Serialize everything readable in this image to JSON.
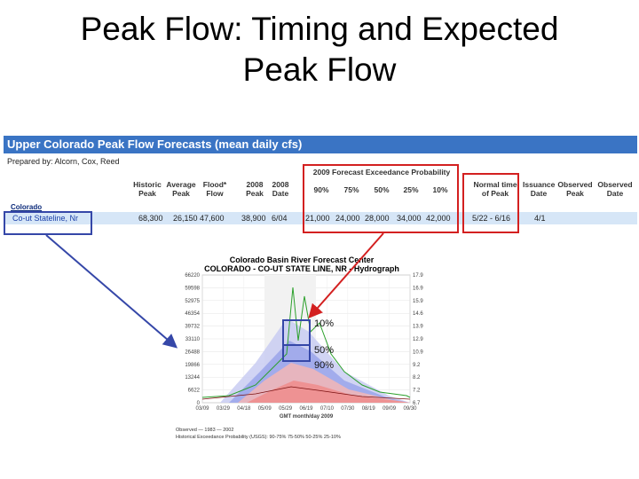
{
  "slide": {
    "title_line1": "Peak Flow: Timing and Expected",
    "title_line2": "Peak Flow"
  },
  "table": {
    "heading": "Upper Colorado Peak Flow Forecasts (mean daily cfs)",
    "prepared_by": "Prepared by: Alcorn, Cox, Reed",
    "col_headers": {
      "historic": "Historic\nPeak",
      "average": "Average\nPeak",
      "flood": "Flood*\nFlow",
      "peak2008": "2008\nPeak",
      "date2008": "2008\nDate",
      "forecast_group": "2009 Forecast Exceedance Probability",
      "p90": "90%",
      "p75": "75%",
      "p50": "50%",
      "p25": "25%",
      "p10": "10%",
      "normal_time": "Normal time\nof Peak",
      "issuance": "Issuance\nDate",
      "obs_peak": "Observed\nPeak",
      "obs_date": "Observed\nDate"
    },
    "state": "Colorado",
    "row": {
      "name": "Co-ut Stateline, Nr",
      "historic": "68,300",
      "average": "26,150",
      "flood": "47,600",
      "peak2008": "38,900",
      "date2008": "6/04",
      "p90": "21,000",
      "p75": "24,000",
      "p50": "28,000",
      "p25": "34,000",
      "p10": "42,000",
      "normal_time": "5/22 - 6/16",
      "issuance": "4/1"
    }
  },
  "hydrograph": {
    "title1": "Colorado Basin River Forecast Center",
    "title2": "COLORADO - CO-UT STATE LINE, NR - Hydrograph",
    "y_ticks": [
      "66220",
      "59598",
      "52975",
      "46354",
      "39732",
      "33110",
      "26488",
      "19866",
      "13244",
      "6622",
      "0"
    ],
    "y2_ticks": [
      "17.9",
      "16.9",
      "15.9",
      "14.6",
      "13.9",
      "12.9",
      "10.9",
      "9.2",
      "8.2",
      "7.2",
      "6.7"
    ],
    "x_ticks": [
      "03/09",
      "03/29",
      "04/18",
      "05/09",
      "05/29",
      "06/19",
      "07/10",
      "07/30",
      "08/19",
      "09/09",
      "09/30"
    ],
    "x_label": "GMT month/day 2009",
    "legend_line1": "Observed  —  1983  —  2002",
    "legend_line2": "Historical Exceedance Probability (USGS):   90-75%   75-50%   50-25%   25-10%",
    "annot_10": "10%",
    "annot_50": "50%",
    "annot_90": "90%",
    "colors": {
      "band_outer": "#c9cdf2",
      "band_mid": "#9aa4ea",
      "band_inner": "#f3b6b6",
      "band_core": "#ee8c8c",
      "observed_green": "#2ca02c",
      "line_dark": "#7a1010"
    }
  },
  "colors": {
    "header_blue": "#3a74c4",
    "row_blue": "#d6e6f7",
    "highlight_red": "#d32020",
    "highlight_navy": "#3547a8"
  }
}
